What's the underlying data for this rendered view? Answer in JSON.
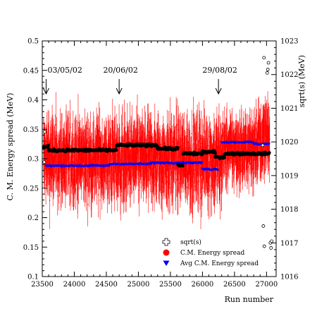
{
  "chart_data": {
    "type": "scatter",
    "title": "",
    "xlabel": "Run number",
    "ylabel_left": "C. M. Energy spread (MeV)",
    "ylabel_right": "sqrt(s) (MeV)",
    "xlim": [
      23500,
      27150
    ],
    "ylim_left": [
      0.1,
      0.5
    ],
    "ylim_right": [
      1016,
      1023
    ],
    "x_ticks": [
      23500,
      24000,
      24500,
      25000,
      25500,
      26000,
      26500,
      27000
    ],
    "y_ticks_left": [
      0.1,
      0.15,
      0.2,
      0.25,
      0.3,
      0.35,
      0.4,
      0.45,
      0.5
    ],
    "y_ticks_right": [
      1016,
      1017,
      1018,
      1019,
      1020,
      1021,
      1022,
      1023
    ],
    "grid": false,
    "legend_position": "bottom-right",
    "annotations": [
      {
        "text": "03/05/02",
        "x": 23560
      },
      {
        "text": "20/06/02",
        "x": 24700
      },
      {
        "text": "29/08/02",
        "x": 26250
      }
    ],
    "series": [
      {
        "name": "sqrt(s)",
        "axis": "right",
        "marker": "cross",
        "color": "#000000",
        "segments": [
          {
            "x": [
              23520,
              23600
            ],
            "y": 1019.85
          },
          {
            "x": [
              23600,
              24420
            ],
            "y": 1019.75
          },
          {
            "x": [
              24420,
              24660
            ],
            "y": 1019.75
          },
          {
            "x": [
              24660,
              25300
            ],
            "y": 1019.9
          },
          {
            "x": [
              25300,
              25620
            ],
            "y": 1019.8
          },
          {
            "x": [
              25620,
              25700
            ],
            "y": 1019.3
          },
          {
            "x": [
              25700,
              26000
            ],
            "y": 1019.65
          },
          {
            "x": [
              26000,
              26200
            ],
            "y": 1019.7
          },
          {
            "x": [
              26200,
              26350
            ],
            "y": 1019.55
          },
          {
            "x": [
              26350,
              27050
            ],
            "y": 1019.65
          }
        ],
        "outliers": [
          {
            "x": 23530,
            "y": 1019.4
          },
          {
            "x": 23540,
            "y": 1020.3
          },
          {
            "x": 26940,
            "y": 1019.9
          },
          {
            "x": 26950,
            "y": 1017.5
          },
          {
            "x": 26965,
            "y": 1016.9
          },
          {
            "x": 27010,
            "y": 1022.05
          },
          {
            "x": 27020,
            "y": 1022.15
          },
          {
            "x": 27030,
            "y": 1022.35
          },
          {
            "x": 27060,
            "y": 1017.0
          },
          {
            "x": 27080,
            "y": 1017.05
          },
          {
            "x": 27070,
            "y": 1016.85
          },
          {
            "x": 26960,
            "y": 1022.5
          }
        ]
      },
      {
        "name": "C.M. Energy spread",
        "axis": "left",
        "marker": "circle",
        "color": "#ff0000",
        "segments": [
          {
            "x": [
              23520,
              26300
            ],
            "center": 0.298,
            "half_range": 0.09,
            "error": 0.04
          },
          {
            "x": [
              26300,
              26800
            ],
            "center": 0.315,
            "half_range": 0.07,
            "error": 0.035
          },
          {
            "x": [
              26800,
              27050
            ],
            "center": 0.33,
            "half_range": 0.07,
            "error": 0.035
          }
        ]
      },
      {
        "name": "Avg C.M. Energy spread",
        "axis": "left",
        "marker": "triangle-down",
        "color": "#0000ff",
        "segments": [
          {
            "x": [
              23560,
              24550
            ],
            "y": 0.288
          },
          {
            "x": [
              24550,
              25200
            ],
            "y": 0.291
          },
          {
            "x": [
              25200,
              26000
            ],
            "y": 0.293
          },
          {
            "x": [
              26000,
              26250
            ],
            "y": 0.282
          },
          {
            "x": [
              26300,
              26800
            ],
            "y": 0.328
          },
          {
            "x": [
              26800,
              27050
            ],
            "y": 0.325
          }
        ]
      }
    ]
  }
}
